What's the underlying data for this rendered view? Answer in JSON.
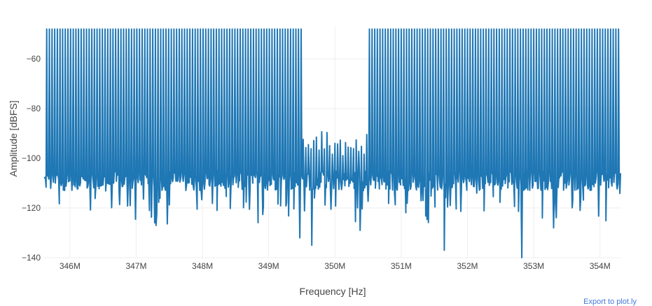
{
  "chart_data": {
    "type": "line",
    "title": "",
    "xlabel": "Frequency [Hz]",
    "ylabel": "Amplitude [dBFS]",
    "xlim": [
      345600000,
      354320000
    ],
    "ylim": [
      -140,
      -47
    ],
    "x_ticks": [
      346000000,
      347000000,
      348000000,
      349000000,
      350000000,
      351000000,
      352000000,
      353000000,
      354000000
    ],
    "x_tick_labels": [
      "346M",
      "347M",
      "348M",
      "349M",
      "350M",
      "351M",
      "352M",
      "353M",
      "354M"
    ],
    "y_ticks": [
      -140,
      -120,
      -100,
      -80,
      -60
    ],
    "y_tick_labels": [
      "−140",
      "−120",
      "−100",
      "−80",
      "−60"
    ],
    "grid": true,
    "series": [
      {
        "color": "#1f77b4",
        "description_note": "spectrum trace",
        "noise_floor_dbfs": -109,
        "noise_spread_db": 4,
        "tone_peak_dbfs": -48,
        "tone_bands_hz": [
          [
            345620000,
            349500000
          ],
          [
            350500000,
            354300000
          ]
        ],
        "tone_spacing_hz": 40000,
        "center_gap_peak_dbfs": -94,
        "deep_nulls": [
          {
            "x": 349470000,
            "y": -132
          },
          {
            "x": 349650000,
            "y": -135
          },
          {
            "x": 351650000,
            "y": -137
          },
          {
            "x": 352820000,
            "y": -140
          },
          {
            "x": 353300000,
            "y": -128
          },
          {
            "x": 353130000,
            "y": -124
          },
          {
            "x": 350380000,
            "y": -129
          },
          {
            "x": 347300000,
            "y": -127
          }
        ]
      }
    ]
  },
  "watermark": "Export to plot.ly"
}
